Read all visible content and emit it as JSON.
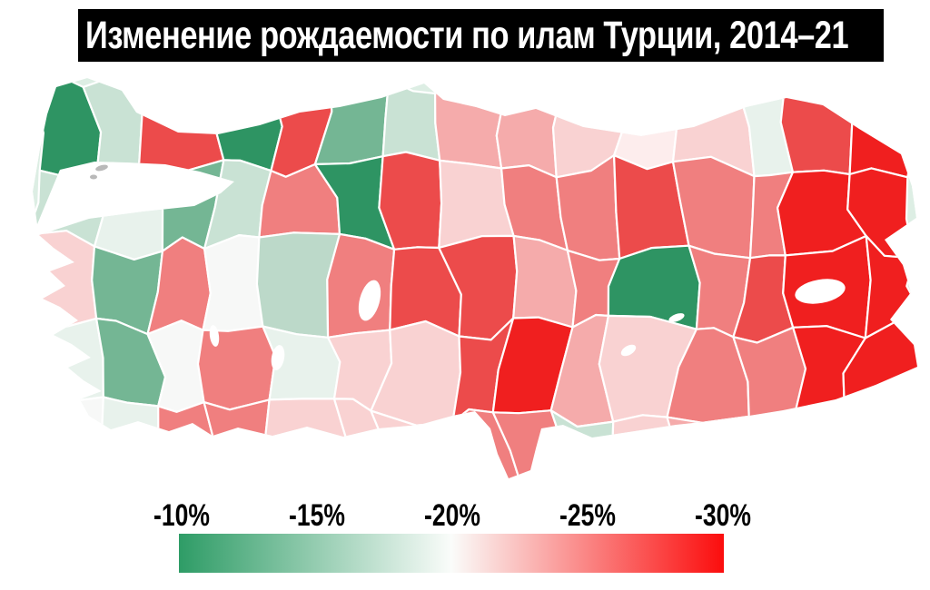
{
  "title": "Изменение рождаемости по илам Турции, 2014–21",
  "title_bar": {
    "background": "#000000",
    "text_color": "#ffffff"
  },
  "legend": {
    "labels": [
      "-10%",
      "-15%",
      "-20%",
      "-25%",
      "-30%"
    ],
    "gradient_start": "#2e9c66",
    "gradient_mid": "#fafcfa",
    "gradient_end": "#fb0d0d"
  },
  "map": {
    "sea_color": "#ffffff",
    "province_border_color": "#ffffff",
    "lake_color": "#ffffff",
    "island_color": "#b9b9b9",
    "base_fill": "#ddeee4",
    "cells": [
      [
        "#2e9463",
        "#c9e2d4",
        "#ec4b4b",
        "#2e9463",
        "#ec4b4b",
        "#74b694",
        "#c9e2d4",
        "#f5abab",
        "#f5abab",
        "#f9d2d2",
        "#fdeded",
        "#f9d2d2",
        "#e8f2ec",
        "#ec4b4b",
        "#f01f1f"
      ],
      [
        "#c9e2d4",
        "#e8f2ec",
        "#74b694",
        "#c9e2d4",
        "#f07f7f",
        "#2e9463",
        "#ec4b4b",
        "#f9d2d2",
        "#f07f7f",
        "#f07f7f",
        "#ec4b4b",
        "#f07f7f",
        "#f07f7f",
        "#f01f1f",
        "#f01f1f"
      ],
      [
        "#f9d2d2",
        "#74b694",
        "#f07f7f",
        "#f7f8f7",
        "#bcd9c9",
        "#f07f7f",
        "#ec4b4b",
        "#ec4b4b",
        "#f5abab",
        "#f07f7f",
        "#2e9463",
        "#f07f7f",
        "#ec4b4b",
        "#f01f1f",
        "#f01f1f"
      ],
      [
        "#e8f2ec",
        "#74b694",
        "#f7f8f7",
        "#f07f7f",
        "#e8f2ec",
        "#f9d2d2",
        "#f9d2d2",
        "#ec4b4b",
        "#f01f1f",
        "#f5abab",
        "#f9d2d2",
        "#f07f7f",
        "#f07f7f",
        "#f01f1f",
        "#f01f1f"
      ],
      [
        "#f7f8f7",
        "#e8f2ec",
        "#f07f7f",
        "#f07f7f",
        "#f9d2d2",
        "#f9d2d2",
        "#f9d2d2",
        "#f07f7f",
        "#f07f7f",
        "#c9e2d4",
        "#f9d2d2",
        "#f5abab",
        "#f07f7f",
        "#ec4b4b",
        "#f01f1f"
      ]
    ]
  }
}
